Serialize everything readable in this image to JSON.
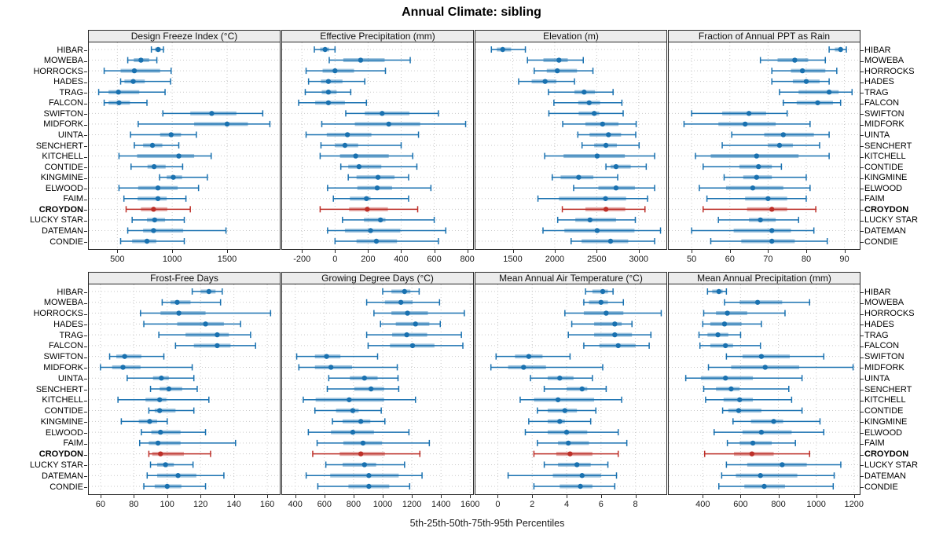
{
  "title": "Annual Climate: sibling",
  "caption": "5th-25th-50th-75th-95th Percentiles",
  "chart_data": {
    "type": "scatter",
    "subtype": "percentile-range-dotplot",
    "percentiles_shown": [
      5,
      25,
      50,
      75,
      95
    ],
    "grid": "dotted",
    "legend_position": "none",
    "highlight_site": "CROYDON",
    "colors": {
      "series": "#1971b0",
      "highlight": "#bd2f28",
      "panel_header_bg": "#ececec",
      "gridline": "#c9c9c9",
      "border": "#2a2a2a"
    },
    "sites": [
      "HIBAR",
      "MOWEBA",
      "HORROCKS",
      "HADES",
      "TRAG",
      "FALCON",
      "SWIFTON",
      "MIDFORK",
      "UINTA",
      "SENCHERT",
      "KITCHELL",
      "CONTIDE",
      "KINGMINE",
      "ELWOOD",
      "FAIM",
      "CROYDON",
      "LUCKY STAR",
      "DATEMAN",
      "CONDIE"
    ],
    "panels": [
      {
        "title": "Design Freeze Index (°C)",
        "row": 0,
        "col": 0,
        "ticks": [
          500,
          1000,
          1500
        ],
        "xlim": [
          240,
          1980
        ],
        "values": [
          [
            810,
            845,
            872,
            895,
            920
          ],
          [
            595,
            650,
            715,
            790,
            860
          ],
          [
            380,
            530,
            655,
            890,
            990
          ],
          [
            530,
            565,
            645,
            750,
            985
          ],
          [
            330,
            420,
            510,
            700,
            935
          ],
          [
            380,
            420,
            515,
            615,
            770
          ],
          [
            915,
            1165,
            1360,
            1585,
            1825
          ],
          [
            690,
            1200,
            1500,
            1690,
            1890
          ],
          [
            620,
            890,
            990,
            1080,
            1220
          ],
          [
            655,
            735,
            820,
            910,
            1060
          ],
          [
            515,
            680,
            1060,
            1200,
            1355
          ],
          [
            625,
            775,
            835,
            940,
            1095
          ],
          [
            885,
            950,
            1010,
            1090,
            1320
          ],
          [
            515,
            690,
            870,
            1050,
            1240
          ],
          [
            560,
            685,
            870,
            950,
            1125
          ],
          [
            580,
            715,
            830,
            955,
            1165
          ],
          [
            635,
            770,
            840,
            935,
            1110
          ],
          [
            595,
            735,
            830,
            1100,
            1490
          ],
          [
            530,
            635,
            770,
            855,
            1110
          ]
        ]
      },
      {
        "title": "Effective Precipitation (mm)",
        "row": 0,
        "col": 1,
        "ticks": [
          -200,
          0,
          200,
          400,
          600,
          800
        ],
        "xlim": [
          -320,
          835
        ],
        "values": [
          [
            -125,
            -90,
            -60,
            -35,
            0
          ],
          [
            -35,
            50,
            155,
            300,
            455
          ],
          [
            -175,
            -75,
            0,
            115,
            305
          ],
          [
            -160,
            -85,
            -40,
            45,
            180
          ],
          [
            -180,
            -80,
            -40,
            10,
            95
          ],
          [
            -220,
            -120,
            -40,
            60,
            190
          ],
          [
            65,
            180,
            285,
            450,
            625
          ],
          [
            -80,
            120,
            325,
            515,
            790
          ],
          [
            -175,
            -50,
            75,
            220,
            505
          ],
          [
            -85,
            0,
            60,
            140,
            400
          ],
          [
            -90,
            30,
            125,
            325,
            470
          ],
          [
            35,
            80,
            145,
            280,
            495
          ],
          [
            80,
            130,
            260,
            360,
            445
          ],
          [
            -45,
            135,
            255,
            345,
            580
          ],
          [
            -10,
            90,
            190,
            215,
            445
          ],
          [
            -90,
            85,
            195,
            320,
            500
          ],
          [
            45,
            175,
            275,
            305,
            600
          ],
          [
            -45,
            60,
            215,
            395,
            670
          ],
          [
            0,
            130,
            250,
            375,
            625
          ]
        ]
      },
      {
        "title": "Elevation (m)",
        "row": 0,
        "col": 2,
        "ticks": [
          1500,
          2000,
          2500,
          3000
        ],
        "xlim": [
          1055,
          3330
        ],
        "values": [
          [
            1245,
            1310,
            1380,
            1480,
            1650
          ],
          [
            1675,
            1865,
            2050,
            2155,
            2340
          ],
          [
            1755,
            1905,
            2030,
            2265,
            2455
          ],
          [
            1570,
            1725,
            1885,
            2020,
            2235
          ],
          [
            1925,
            2235,
            2350,
            2480,
            2695
          ],
          [
            1990,
            2280,
            2410,
            2540,
            2800
          ],
          [
            1930,
            2285,
            2470,
            2530,
            2815
          ],
          [
            2095,
            2365,
            2570,
            2760,
            2970
          ],
          [
            2275,
            2415,
            2640,
            2790,
            2965
          ],
          [
            2325,
            2470,
            2610,
            2740,
            3005
          ],
          [
            1880,
            2105,
            2505,
            2835,
            3190
          ],
          [
            2610,
            2665,
            2730,
            2905,
            3090
          ],
          [
            1970,
            2070,
            2285,
            2460,
            2750
          ],
          [
            2225,
            2520,
            2730,
            2955,
            3190
          ],
          [
            1800,
            2050,
            2605,
            2850,
            3105
          ],
          [
            2090,
            2365,
            2610,
            2840,
            3075
          ],
          [
            2035,
            2245,
            2420,
            2730,
            2960
          ],
          [
            1860,
            2115,
            2505,
            2950,
            3260
          ],
          [
            2195,
            2320,
            2665,
            2875,
            3190
          ]
        ]
      },
      {
        "title": "Fraction of Annual PPT as Rain",
        "row": 0,
        "col": 3,
        "ticks": [
          50,
          60,
          70,
          80,
          90
        ],
        "xlim": [
          44,
          94
        ],
        "values": [
          [
            86,
            87.5,
            89,
            89.5,
            90.5
          ],
          [
            68,
            72.5,
            77,
            80.5,
            85
          ],
          [
            71,
            76,
            79,
            85,
            88
          ],
          [
            71,
            76.5,
            80,
            83.5,
            86
          ],
          [
            73,
            78,
            86,
            88.5,
            92
          ],
          [
            74,
            77.5,
            83,
            87,
            89
          ],
          [
            50,
            58,
            65,
            69.5,
            75
          ],
          [
            48,
            57,
            64,
            72,
            81
          ],
          [
            60.5,
            69,
            74,
            82,
            86
          ],
          [
            58,
            70,
            73,
            76.5,
            83.5
          ],
          [
            51,
            55,
            67,
            78,
            86
          ],
          [
            53,
            62.5,
            67.5,
            71,
            73.5
          ],
          [
            58.5,
            63.5,
            67,
            71,
            80
          ],
          [
            52,
            59,
            66,
            74,
            81
          ],
          [
            54,
            64,
            70,
            75,
            80
          ],
          [
            53,
            64.5,
            71,
            75,
            82.5
          ],
          [
            57,
            65,
            68,
            72,
            78
          ],
          [
            50,
            61,
            71,
            76,
            82
          ],
          [
            55,
            63,
            71,
            77,
            85.5
          ]
        ]
      },
      {
        "title": "Frost-Free Days",
        "row": 1,
        "col": 0,
        "ticks": [
          60,
          80,
          100,
          120,
          140,
          160
        ],
        "xlim": [
          53,
          167.5
        ],
        "values": [
          [
            115,
            120,
            125,
            129,
            133
          ],
          [
            97,
            102,
            106,
            114,
            132
          ],
          [
            84,
            96,
            107,
            123,
            162
          ],
          [
            86,
            106,
            123,
            134,
            144
          ],
          [
            95,
            111,
            130,
            137,
            150
          ],
          [
            105,
            116,
            130,
            138,
            153
          ],
          [
            65.5,
            69.5,
            74.5,
            84.5,
            98
          ],
          [
            60,
            67,
            73.5,
            84,
            115
          ],
          [
            76,
            91.5,
            96.5,
            101,
            116
          ],
          [
            90,
            95.5,
            101,
            109,
            118
          ],
          [
            70.5,
            87,
            95.5,
            99.5,
            125
          ],
          [
            89,
            92.5,
            95.5,
            105,
            116
          ],
          [
            72.5,
            83,
            89.5,
            94,
            100
          ],
          [
            84.5,
            90.5,
            96,
            108,
            123
          ],
          [
            83.5,
            89,
            94.5,
            108,
            141
          ],
          [
            89,
            91,
            96,
            110,
            126
          ],
          [
            90,
            94,
            99,
            104,
            115.5
          ],
          [
            88,
            94,
            106.5,
            117.5,
            134
          ],
          [
            86,
            92.5,
            100,
            108.5,
            123
          ]
        ]
      },
      {
        "title": "Growing Degree Days (°C)",
        "row": 1,
        "col": 1,
        "ticks": [
          400,
          600,
          800,
          1000,
          1200,
          1400,
          1600
        ],
        "xlim": [
          310,
          1620
        ],
        "values": [
          [
            1000,
            1060,
            1150,
            1190,
            1250
          ],
          [
            890,
            1015,
            1125,
            1205,
            1390
          ],
          [
            940,
            1060,
            1170,
            1310,
            1560
          ],
          [
            985,
            1090,
            1225,
            1320,
            1395
          ],
          [
            890,
            1065,
            1165,
            1305,
            1540
          ],
          [
            900,
            1050,
            1205,
            1355,
            1550
          ],
          [
            410,
            535,
            615,
            710,
            965
          ],
          [
            425,
            535,
            645,
            790,
            1100
          ],
          [
            630,
            775,
            875,
            965,
            1105
          ],
          [
            620,
            805,
            920,
            1010,
            1110
          ],
          [
            455,
            540,
            770,
            1010,
            1225
          ],
          [
            535,
            680,
            795,
            835,
            990
          ],
          [
            655,
            725,
            850,
            915,
            1015
          ],
          [
            490,
            645,
            795,
            940,
            1180
          ],
          [
            550,
            730,
            865,
            995,
            1320
          ],
          [
            520,
            705,
            850,
            1015,
            1255
          ],
          [
            610,
            725,
            875,
            955,
            1150
          ],
          [
            475,
            640,
            905,
            1110,
            1270
          ],
          [
            555,
            765,
            905,
            1045,
            1185
          ]
        ]
      },
      {
        "title": "Mean Annual Air Temperature (°C)",
        "row": 1,
        "col": 2,
        "ticks": [
          0,
          2,
          4,
          6,
          8
        ],
        "xlim": [
          -1.3,
          9.8
        ],
        "values": [
          [
            5.1,
            5.5,
            6.1,
            6.4,
            6.7
          ],
          [
            5.0,
            5.3,
            6.0,
            6.4,
            7.3
          ],
          [
            3.9,
            5.0,
            6.3,
            7.3,
            9.5
          ],
          [
            4.3,
            5.6,
            6.8,
            7.2,
            7.8
          ],
          [
            4.1,
            5.6,
            6.8,
            7.8,
            8.9
          ],
          [
            5.0,
            5.9,
            7.0,
            8.0,
            8.8
          ],
          [
            -0.1,
            1.0,
            1.8,
            2.6,
            4.2
          ],
          [
            -0.4,
            0.6,
            1.5,
            2.8,
            6.1
          ],
          [
            1.9,
            2.9,
            3.6,
            4.4,
            5.5
          ],
          [
            2.7,
            4.0,
            4.9,
            5.2,
            6.3
          ],
          [
            1.3,
            2.1,
            3.5,
            5.6,
            7.2
          ],
          [
            2.3,
            2.9,
            3.9,
            4.6,
            5.7
          ],
          [
            1.8,
            2.9,
            3.6,
            3.9,
            5.4
          ],
          [
            1.6,
            2.9,
            4.0,
            5.2,
            7.0
          ],
          [
            2.3,
            3.5,
            4.1,
            5.3,
            7.5
          ],
          [
            2.1,
            3.4,
            4.2,
            5.5,
            7.0
          ],
          [
            2.7,
            3.5,
            4.6,
            5.4,
            6.4
          ],
          [
            0.6,
            3.2,
            4.9,
            6.0,
            6.9
          ],
          [
            2.1,
            3.6,
            4.8,
            5.5,
            6.8
          ]
        ]
      },
      {
        "title": "Mean Annual Precipitation (mm)",
        "row": 1,
        "col": 3,
        "ticks": [
          400,
          600,
          800,
          1000,
          1200
        ],
        "xlim": [
          220,
          1230
        ],
        "values": [
          [
            425,
            450,
            485,
            505,
            525
          ],
          [
            515,
            595,
            690,
            820,
            965
          ],
          [
            405,
            470,
            530,
            635,
            835
          ],
          [
            400,
            440,
            515,
            605,
            710
          ],
          [
            380,
            425,
            480,
            535,
            600
          ],
          [
            385,
            440,
            520,
            560,
            705
          ],
          [
            525,
            610,
            710,
            860,
            1040
          ],
          [
            430,
            550,
            730,
            910,
            1195
          ],
          [
            310,
            390,
            520,
            665,
            925
          ],
          [
            405,
            470,
            550,
            595,
            855
          ],
          [
            415,
            510,
            595,
            665,
            870
          ],
          [
            505,
            535,
            590,
            710,
            925
          ],
          [
            560,
            655,
            775,
            825,
            1020
          ],
          [
            460,
            610,
            710,
            870,
            1040
          ],
          [
            530,
            595,
            665,
            765,
            890
          ],
          [
            410,
            565,
            660,
            775,
            965
          ],
          [
            525,
            635,
            820,
            950,
            1130
          ],
          [
            500,
            575,
            705,
            900,
            1095
          ],
          [
            485,
            620,
            725,
            835,
            1090
          ]
        ]
      }
    ]
  }
}
